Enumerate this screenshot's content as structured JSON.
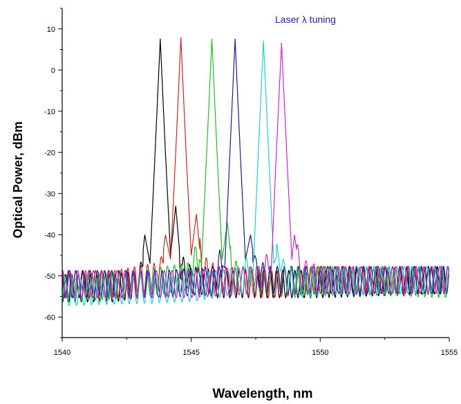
{
  "chart_data": {
    "type": "line",
    "title": "",
    "xlabel": "Wavelength, nm",
    "ylabel": "Optical Power, dBm",
    "xlim": [
      1540,
      1555
    ],
    "ylim": [
      -65,
      15
    ],
    "x_ticks": [
      1540,
      1545,
      1550,
      1555
    ],
    "x_tick_labels": [
      "1540",
      "1545",
      "1550",
      "1555"
    ],
    "y_ticks": [
      10,
      0,
      -10,
      -20,
      -30,
      -40,
      -50,
      -60
    ],
    "y_tick_labels": [
      "10",
      "0",
      "-10",
      "-20",
      "-30",
      "-40",
      "-50",
      "-60"
    ],
    "grid": false,
    "legend": "none",
    "annotation": {
      "text": "Laser λ tuning",
      "color": "#1f1f9c"
    },
    "series": [
      {
        "color": "#000000",
        "peak_nm": 1543.8,
        "peak_dBm": 7.5,
        "side_modes": [
          [
            1543.2,
            -40
          ],
          [
            1544.4,
            -33
          ]
        ],
        "points": [
          [
            1540.0,
            -53
          ],
          [
            1541.0,
            -53
          ],
          [
            1542.0,
            -53
          ],
          [
            1543.0,
            -52
          ],
          [
            1543.2,
            -40
          ],
          [
            1543.4,
            -47
          ],
          [
            1543.6,
            -20
          ],
          [
            1543.8,
            7.5
          ],
          [
            1544.0,
            -20
          ],
          [
            1544.2,
            -45
          ],
          [
            1544.4,
            -33
          ],
          [
            1544.6,
            -48
          ],
          [
            1545.0,
            -51
          ],
          [
            1546.0,
            -52
          ],
          [
            1548.0,
            -52
          ],
          [
            1550.0,
            -52
          ],
          [
            1555.0,
            -51
          ]
        ]
      },
      {
        "color": "#cc2222",
        "peak_nm": 1544.6,
        "peak_dBm": 7.8,
        "side_modes": [
          [
            1544.0,
            -40
          ],
          [
            1545.2,
            -35
          ]
        ],
        "points": [
          [
            1540.0,
            -52
          ],
          [
            1542.0,
            -52
          ],
          [
            1543.8,
            -50
          ],
          [
            1544.0,
            -40
          ],
          [
            1544.2,
            -46
          ],
          [
            1544.4,
            -20
          ],
          [
            1544.6,
            7.8
          ],
          [
            1544.8,
            -20
          ],
          [
            1545.0,
            -45
          ],
          [
            1545.2,
            -35
          ],
          [
            1545.4,
            -48
          ],
          [
            1546.0,
            -51
          ],
          [
            1548.0,
            -52
          ],
          [
            1550.0,
            -51
          ],
          [
            1555.0,
            -51
          ]
        ]
      },
      {
        "color": "#22bb22",
        "peak_nm": 1545.8,
        "peak_dBm": 7.5,
        "side_modes": [
          [
            1545.2,
            -45
          ],
          [
            1546.4,
            -37
          ]
        ],
        "points": [
          [
            1540.0,
            -53
          ],
          [
            1543.0,
            -52
          ],
          [
            1545.0,
            -50
          ],
          [
            1545.2,
            -45
          ],
          [
            1545.4,
            -47
          ],
          [
            1545.6,
            -20
          ],
          [
            1545.8,
            7.5
          ],
          [
            1546.0,
            -20
          ],
          [
            1546.2,
            -46
          ],
          [
            1546.4,
            -37
          ],
          [
            1546.6,
            -49
          ],
          [
            1547.0,
            -51
          ],
          [
            1550.0,
            -51
          ],
          [
            1555.0,
            -52
          ]
        ]
      },
      {
        "color": "#1a1a8c",
        "peak_nm": 1546.7,
        "peak_dBm": 7.5,
        "side_modes": [
          [
            1546.1,
            -47
          ],
          [
            1547.3,
            -40
          ]
        ],
        "points": [
          [
            1540.0,
            -52
          ],
          [
            1544.0,
            -52
          ],
          [
            1545.9,
            -51
          ],
          [
            1546.1,
            -47
          ],
          [
            1546.3,
            -48
          ],
          [
            1546.5,
            -20
          ],
          [
            1546.7,
            7.5
          ],
          [
            1546.9,
            -20
          ],
          [
            1547.1,
            -46
          ],
          [
            1547.3,
            -40
          ],
          [
            1547.5,
            -49
          ],
          [
            1548.0,
            -51
          ],
          [
            1550.0,
            -51
          ],
          [
            1555.0,
            -51
          ]
        ]
      },
      {
        "color": "#22cccc",
        "peak_nm": 1547.8,
        "peak_dBm": 7.0,
        "side_modes": [
          [
            1547.2,
            -48
          ],
          [
            1548.4,
            -44
          ]
        ],
        "points": [
          [
            1540.0,
            -54
          ],
          [
            1545.0,
            -53
          ],
          [
            1547.0,
            -51
          ],
          [
            1547.2,
            -48
          ],
          [
            1547.4,
            -49
          ],
          [
            1547.6,
            -20
          ],
          [
            1547.8,
            7.0
          ],
          [
            1548.0,
            -20
          ],
          [
            1548.2,
            -47
          ],
          [
            1548.4,
            -44
          ],
          [
            1548.6,
            -50
          ],
          [
            1549.0,
            -52
          ],
          [
            1552.0,
            -51
          ],
          [
            1555.0,
            -51
          ]
        ]
      },
      {
        "color": "#cc22cc",
        "peak_nm": 1548.5,
        "peak_dBm": 6.5,
        "side_modes": [
          [
            1547.9,
            -48
          ],
          [
            1549.0,
            -40
          ]
        ],
        "points": [
          [
            1540.0,
            -52
          ],
          [
            1545.0,
            -52
          ],
          [
            1547.7,
            -51
          ],
          [
            1547.9,
            -48
          ],
          [
            1548.1,
            -49
          ],
          [
            1548.3,
            -20
          ],
          [
            1548.5,
            6.5
          ],
          [
            1548.7,
            -20
          ],
          [
            1548.9,
            -46
          ],
          [
            1549.0,
            -40
          ],
          [
            1549.2,
            -49
          ],
          [
            1550.0,
            -51
          ],
          [
            1555.0,
            -51
          ]
        ]
      }
    ]
  }
}
